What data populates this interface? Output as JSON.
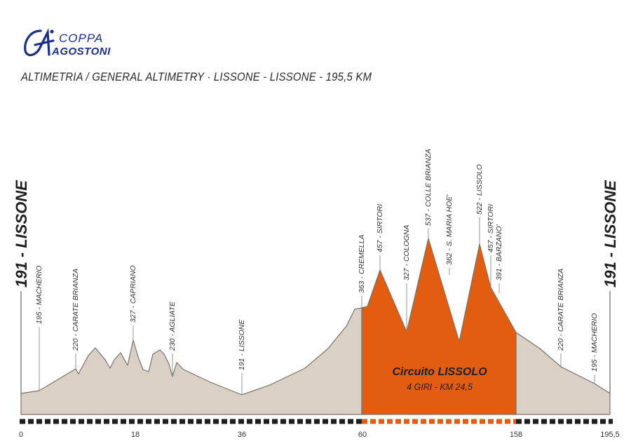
{
  "logo": {
    "line1": "COPPA",
    "line2": "AGOSTONI",
    "brand_color": "#1b2f8a"
  },
  "chart_data": {
    "type": "area",
    "title": "ALTIMETRIA / GENERAL ALTIMETRY  ·  LISSONE - LISSONE - 195,5 KM",
    "xlabel": "",
    "ylabel": "",
    "distance_ticks": [
      "0",
      "18",
      "36",
      "60",
      "158",
      "195,5"
    ],
    "start_label": "191 - LISSONE",
    "finish_label": "191 - LISSONE",
    "circuit": {
      "name": "Circuito LISSOLO",
      "laps": "4 GIRI - KM 24,5",
      "color": "#e35d10"
    },
    "profile_color": "#d9d0c6",
    "waypoints": [
      {
        "label": "195 - MACHERIO"
      },
      {
        "label": "220 - CARATE BRIANZA"
      },
      {
        "label": "327 - CAPRIANO"
      },
      {
        "label": "230 - AGLIATE"
      },
      {
        "label": "191 - LISSONE"
      },
      {
        "label": "363 - CREMELLA"
      },
      {
        "label": "457 - SIRTORI"
      },
      {
        "label": "327 - COLOGNA"
      },
      {
        "label": "537 - COLLE BRIANZA"
      },
      {
        "label": "362 - S. MARIA HOE'"
      },
      {
        "label": "522 - LISSOLO"
      },
      {
        "label": "457 - SIRTORI"
      },
      {
        "label": "391 - BARZANO'"
      },
      {
        "label": "220 - CARATE BRIANZA"
      },
      {
        "label": "195 - MACHERIO"
      }
    ]
  }
}
